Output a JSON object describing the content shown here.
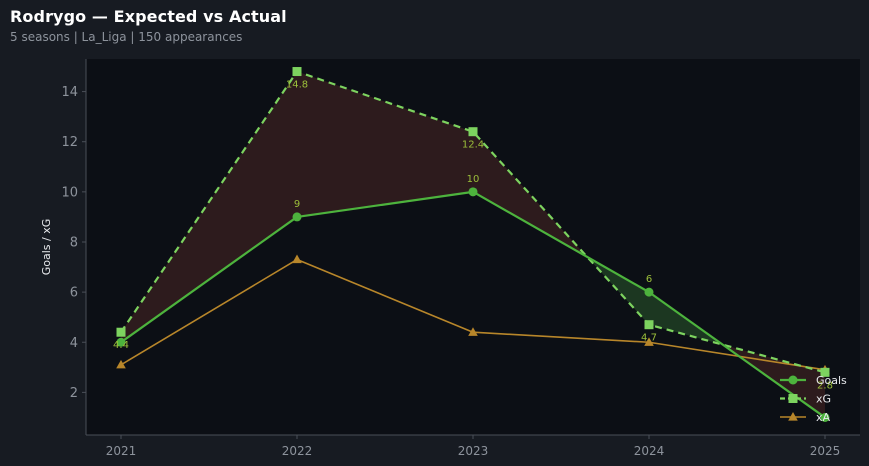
{
  "header": {
    "title": "Rodrygo — Expected vs Actual",
    "subtitle": "5 seasons | La_Liga | 150 appearances"
  },
  "colors": {
    "page_bg": "#171b22",
    "plot_bg": "#0c0f15",
    "goals": "#4db33d",
    "xg": "#7dd35f",
    "xa": "#b8862a",
    "underperform_fill": "#2f1c1e",
    "overperform_fill": "#1d3a22",
    "label_color": "#9bbf3a"
  },
  "chart_data": {
    "type": "line",
    "title": "Rodrygo — Expected vs Actual",
    "subtitle": "5 seasons | La_Liga | 150 appearances",
    "xlabel": "",
    "ylabel": "Goals / xG",
    "x": [
      "2021",
      "2022",
      "2023",
      "2024",
      "2025"
    ],
    "ylim": [
      0.3,
      15.3
    ],
    "yticks": [
      2,
      4,
      6,
      8,
      10,
      12,
      14
    ],
    "grid": false,
    "legend_position": "bottom-right",
    "series": [
      {
        "name": "Goals",
        "key": "goals",
        "values": [
          4,
          9,
          10,
          6,
          1
        ],
        "marker": "circle",
        "linestyle": "solid",
        "labels": [
          "",
          "9",
          "10",
          "6",
          ""
        ]
      },
      {
        "name": "xG",
        "key": "xg",
        "values": [
          4.4,
          14.8,
          12.4,
          4.7,
          2.8
        ],
        "marker": "square",
        "linestyle": "dashed",
        "labels": [
          "4.4",
          "14.8",
          "12.4",
          "4.7",
          "2.8"
        ]
      },
      {
        "name": "xA",
        "key": "xa",
        "values": [
          3.1,
          7.3,
          4.4,
          4.0,
          2.9
        ],
        "marker": "triangle",
        "linestyle": "solid",
        "labels": [
          "",
          "",
          "",
          "",
          ""
        ]
      }
    ]
  }
}
